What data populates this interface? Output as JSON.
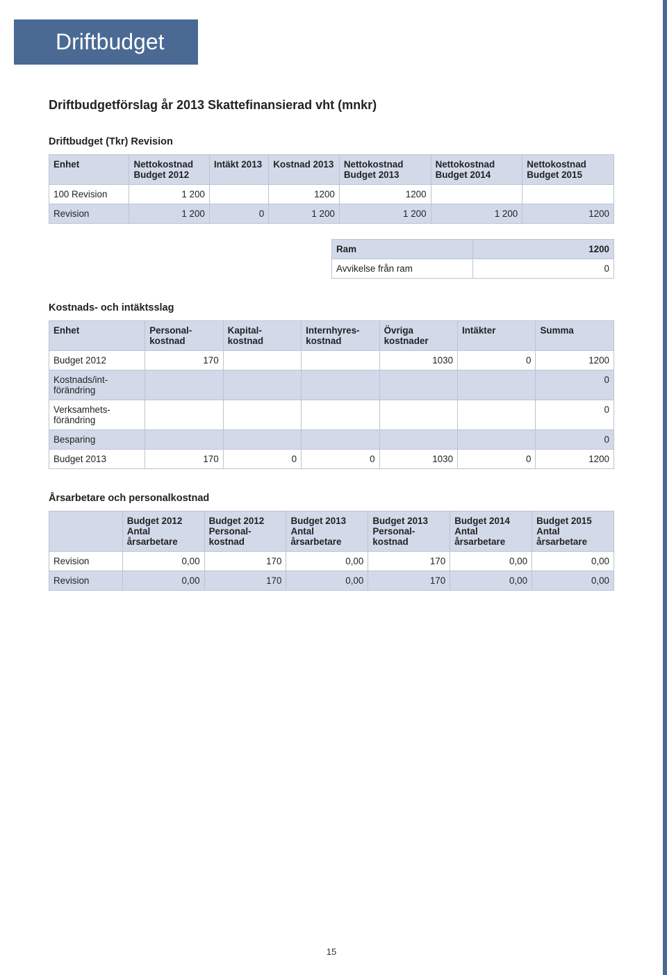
{
  "title": "Driftbudget",
  "subtitle": "Driftbudgetförslag år 2013 Skattefinansierad vht (mnkr)",
  "section1": {
    "heading": "Driftbudget (Tkr) Revision",
    "columns": [
      "Enhet",
      "Nettokostnad Budget 2012",
      "Intäkt 2013",
      "Kostnad 2013",
      "Nettokostnad Budget 2013",
      "Nettokostnad Budget 2014",
      "Nettokostnad Budget 2015"
    ],
    "rows": [
      {
        "label": "100 Revision",
        "c1": "1 200",
        "c2": "",
        "c3": "1200",
        "c4": "1200",
        "c5": "",
        "c6": ""
      },
      {
        "label": "Revision",
        "c1": "1 200",
        "c2": "0",
        "c3": "1 200",
        "c4": "1 200",
        "c5": "1 200",
        "c6": "1200",
        "shade": true
      }
    ]
  },
  "ramTable": {
    "rows": [
      {
        "label": "Ram",
        "value": "1200",
        "isHeader": true
      },
      {
        "label": "Avvikelse från ram",
        "value": "0",
        "isHeader": false
      }
    ]
  },
  "section2": {
    "heading": "Kostnads- och intäktsslag",
    "columns": [
      "Enhet",
      "Personal-kostnad",
      "Kapital-kostnad",
      "Internhyres-kostnad",
      "Övriga kostnader",
      "Intäkter",
      "Summa"
    ],
    "rows": [
      {
        "label": "Budget 2012",
        "c1": "170",
        "c2": "",
        "c3": "",
        "c4": "1030",
        "c5": "0",
        "c6": "1200"
      },
      {
        "label": "Kostnads/int-förändring",
        "c1": "",
        "c2": "",
        "c3": "",
        "c4": "",
        "c5": "",
        "c6": "0",
        "shade": true
      },
      {
        "label": "Verksamhets-förändring",
        "c1": "",
        "c2": "",
        "c3": "",
        "c4": "",
        "c5": "",
        "c6": "0"
      },
      {
        "label": "Besparing",
        "c1": "",
        "c2": "",
        "c3": "",
        "c4": "",
        "c5": "",
        "c6": "0",
        "shade": true
      },
      {
        "label": "Budget 2013",
        "c1": "170",
        "c2": "0",
        "c3": "0",
        "c4": "1030",
        "c5": "0",
        "c6": "1200"
      }
    ]
  },
  "section3": {
    "heading": "Årsarbetare och personalkostnad",
    "columns": [
      "",
      "Budget 2012 Antal årsarbetare",
      "Budget 2012 Personal-kostnad",
      "Budget 2013 Antal årsarbetare",
      "Budget 2013 Personal-kostnad",
      "Budget 2014 Antal årsarbetare",
      "Budget 2015 Antal årsarbetare"
    ],
    "rows": [
      {
        "label": "Revision",
        "c1": "0,00",
        "c2": "170",
        "c3": "0,00",
        "c4": "170",
        "c5": "0,00",
        "c6": "0,00"
      },
      {
        "label": "Revision",
        "c1": "0,00",
        "c2": "170",
        "c3": "0,00",
        "c4": "170",
        "c5": "0,00",
        "c6": "0,00",
        "shade": true
      }
    ]
  },
  "pageNumber": "15"
}
